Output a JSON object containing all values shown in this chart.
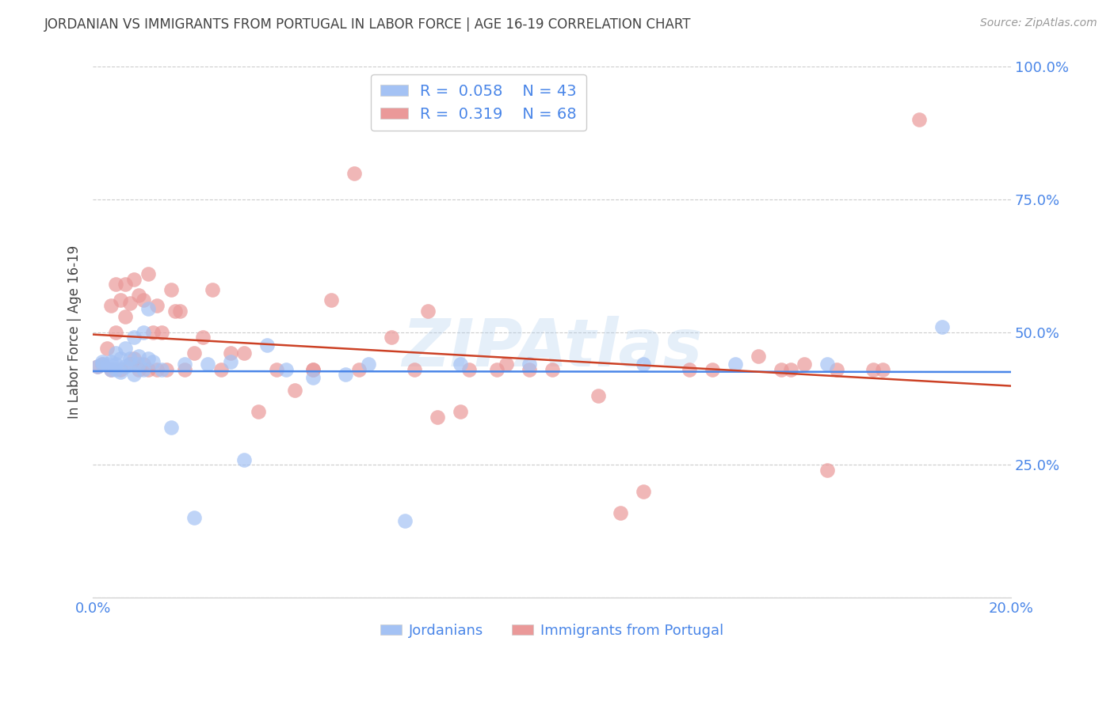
{
  "title": "JORDANIAN VS IMMIGRANTS FROM PORTUGAL IN LABOR FORCE | AGE 16-19 CORRELATION CHART",
  "source": "Source: ZipAtlas.com",
  "ylabel": "In Labor Force | Age 16-19",
  "xlabel_jordanians": "Jordanians",
  "xlabel_portugal": "Immigrants from Portugal",
  "xlim": [
    0.0,
    0.2
  ],
  "ylim": [
    0.0,
    1.0
  ],
  "ytick_vals": [
    0.0,
    0.25,
    0.5,
    0.75,
    1.0
  ],
  "ytick_labels": [
    "",
    "25.0%",
    "50.0%",
    "75.0%",
    "100.0%"
  ],
  "xtick_vals": [
    0.0,
    0.04,
    0.08,
    0.12,
    0.16,
    0.2
  ],
  "xtick_labels": [
    "0.0%",
    "",
    "",
    "",
    "",
    "20.0%"
  ],
  "blue_R": 0.058,
  "blue_N": 43,
  "pink_R": 0.319,
  "pink_N": 68,
  "blue_color": "#a4c2f4",
  "pink_color": "#ea9999",
  "line_blue": "#4a86e8",
  "line_pink": "#cc4125",
  "title_color": "#434343",
  "ylabel_color": "#434343",
  "tick_color": "#4a86e8",
  "grid_color": "#cccccc",
  "watermark": "ZIPAtlas",
  "background_color": "#ffffff",
  "blue_x": [
    0.001,
    0.002,
    0.002,
    0.003,
    0.004,
    0.004,
    0.005,
    0.005,
    0.005,
    0.006,
    0.006,
    0.007,
    0.007,
    0.008,
    0.008,
    0.009,
    0.009,
    0.01,
    0.01,
    0.011,
    0.011,
    0.012,
    0.012,
    0.013,
    0.015,
    0.017,
    0.02,
    0.022,
    0.025,
    0.03,
    0.033,
    0.038,
    0.042,
    0.048,
    0.055,
    0.06,
    0.068,
    0.08,
    0.095,
    0.12,
    0.14,
    0.16,
    0.185
  ],
  "blue_y": [
    0.435,
    0.44,
    0.445,
    0.44,
    0.43,
    0.445,
    0.43,
    0.44,
    0.46,
    0.425,
    0.45,
    0.435,
    0.47,
    0.44,
    0.45,
    0.42,
    0.49,
    0.44,
    0.455,
    0.43,
    0.5,
    0.45,
    0.545,
    0.445,
    0.43,
    0.32,
    0.44,
    0.15,
    0.44,
    0.445,
    0.26,
    0.475,
    0.43,
    0.415,
    0.42,
    0.44,
    0.145,
    0.44,
    0.44,
    0.44,
    0.44,
    0.44,
    0.51
  ],
  "pink_x": [
    0.001,
    0.002,
    0.003,
    0.004,
    0.004,
    0.005,
    0.005,
    0.006,
    0.006,
    0.007,
    0.007,
    0.008,
    0.008,
    0.009,
    0.009,
    0.01,
    0.01,
    0.011,
    0.011,
    0.012,
    0.012,
    0.013,
    0.014,
    0.014,
    0.015,
    0.016,
    0.017,
    0.018,
    0.019,
    0.02,
    0.022,
    0.024,
    0.026,
    0.028,
    0.03,
    0.033,
    0.036,
    0.04,
    0.044,
    0.048,
    0.052,
    0.057,
    0.065,
    0.073,
    0.08,
    0.09,
    0.1,
    0.11,
    0.12,
    0.135,
    0.15,
    0.155,
    0.16,
    0.17,
    0.075,
    0.088,
    0.095,
    0.115,
    0.13,
    0.145,
    0.152,
    0.162,
    0.172,
    0.18,
    0.048,
    0.058,
    0.07,
    0.082
  ],
  "pink_y": [
    0.435,
    0.44,
    0.47,
    0.55,
    0.43,
    0.5,
    0.59,
    0.43,
    0.56,
    0.53,
    0.59,
    0.44,
    0.555,
    0.45,
    0.6,
    0.57,
    0.43,
    0.44,
    0.56,
    0.61,
    0.43,
    0.5,
    0.43,
    0.55,
    0.5,
    0.43,
    0.58,
    0.54,
    0.54,
    0.43,
    0.46,
    0.49,
    0.58,
    0.43,
    0.46,
    0.46,
    0.35,
    0.43,
    0.39,
    0.43,
    0.56,
    0.8,
    0.49,
    0.54,
    0.35,
    0.44,
    0.43,
    0.38,
    0.2,
    0.43,
    0.43,
    0.44,
    0.24,
    0.43,
    0.34,
    0.43,
    0.43,
    0.16,
    0.43,
    0.455,
    0.43,
    0.43,
    0.43,
    0.9,
    0.43,
    0.43,
    0.43,
    0.43
  ]
}
